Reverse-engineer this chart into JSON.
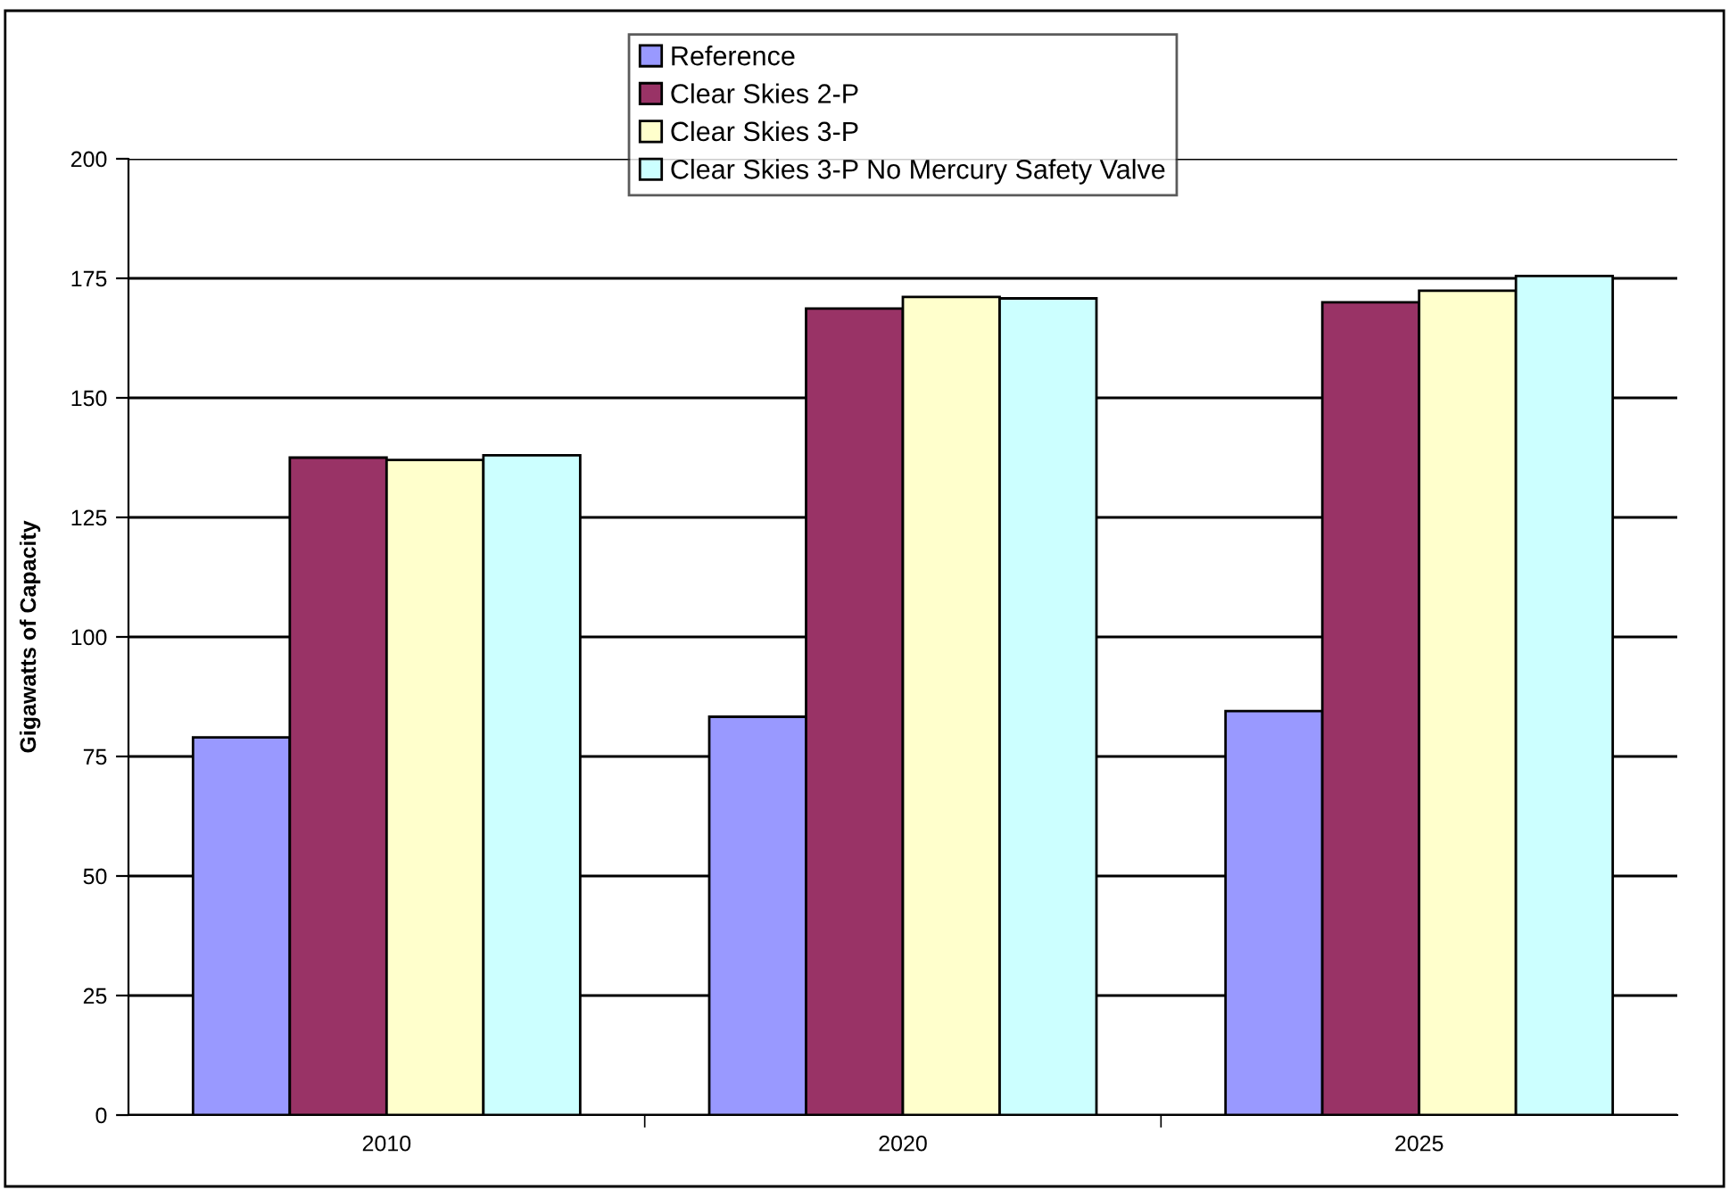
{
  "chart_data": {
    "type": "bar",
    "ylabel": "Gigawatts of Capacity",
    "categories": [
      "2010",
      "2020",
      "2025"
    ],
    "series": [
      {
        "name": "Reference",
        "color": "#9999ff",
        "values": [
          79,
          83.3,
          84.5
        ]
      },
      {
        "name": "Clear Skies 2-P",
        "color": "#993366",
        "values": [
          137.5,
          168.7,
          170
        ]
      },
      {
        "name": "Clear Skies 3-P",
        "color": "#ffffcc",
        "values": [
          137,
          171.1,
          172.4
        ]
      },
      {
        "name": "Clear Skies 3-P No Mercury Safety Valve",
        "color": "#ccffff",
        "values": [
          138,
          170.8,
          175.5
        ]
      }
    ],
    "ylim": [
      0,
      200
    ],
    "yticks": [
      0,
      25,
      50,
      75,
      100,
      125,
      150,
      175,
      200
    ],
    "grid": "y",
    "legend": "top"
  }
}
